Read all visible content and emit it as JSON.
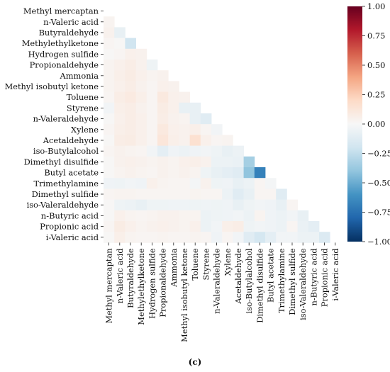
{
  "chart_data": {
    "type": "heatmap",
    "subtype": "lower-triangle correlation matrix",
    "labels": [
      "Methyl mercaptan",
      "n-Valeric acid",
      "Butyraldehyde",
      "Methylethylketone",
      "Hydrogen sulfide",
      "Propionaldehyde",
      "Ammonia",
      "Methyl isobutyl ketone",
      "Toluene",
      "Styrene",
      "n-Valeraldehyde",
      "Xylene",
      "Acetaldehyde",
      "iso-Butylalcohol",
      "Dimethyl disulfide",
      "Butyl acetate",
      "Trimethylamine",
      "Dimethyl sulfide",
      "iso-Valeraldehyde",
      "n-Butyric acid",
      "Propionic acid",
      "i-Valeric acid"
    ],
    "matrix": [
      [],
      [
        0.03
      ],
      [
        0.04,
        -0.08
      ],
      [
        0.02,
        0.01,
        -0.2
      ],
      [
        0.01,
        0.02,
        0.05,
        0.04
      ],
      [
        0.03,
        0.05,
        0.07,
        0.04,
        -0.05
      ],
      [
        0.03,
        0.06,
        0.08,
        0.05,
        0.03,
        0.04
      ],
      [
        0.03,
        0.05,
        0.07,
        0.04,
        0.02,
        0.05,
        0.04
      ],
      [
        0.02,
        0.07,
        0.09,
        0.06,
        0.02,
        0.1,
        0.05,
        0.04
      ],
      [
        -0.03,
        0.06,
        0.07,
        0.04,
        0.02,
        0.08,
        0.05,
        -0.08,
        -0.08
      ],
      [
        0.01,
        0.05,
        0.07,
        0.05,
        0.02,
        0.07,
        0.04,
        0.03,
        -0.08,
        -0.12
      ],
      [
        0.02,
        0.06,
        0.07,
        0.05,
        0.02,
        0.1,
        0.05,
        0.04,
        0.06,
        0.02,
        -0.03
      ],
      [
        0.01,
        0.07,
        0.08,
        0.05,
        0.02,
        0.12,
        0.06,
        0.04,
        0.16,
        0.05,
        0.02,
        0.03
      ],
      [
        0.02,
        0.04,
        0.03,
        0.02,
        -0.03,
        -0.1,
        -0.04,
        -0.06,
        -0.04,
        -0.03,
        -0.05,
        -0.08,
        -0.06
      ],
      [
        0.01,
        0.04,
        0.05,
        0.04,
        0.03,
        0.04,
        0.03,
        0.05,
        0.06,
        0.04,
        -0.06,
        -0.06,
        -0.07,
        -0.34
      ],
      [
        0.01,
        0.03,
        0.04,
        0.03,
        0.02,
        0.04,
        0.03,
        0.04,
        0.03,
        -0.05,
        -0.08,
        -0.1,
        -0.12,
        -0.4,
        -0.68
      ],
      [
        -0.04,
        -0.05,
        -0.03,
        -0.04,
        0.05,
        0.03,
        0.02,
        0.02,
        -0.02,
        0.04,
        -0.05,
        -0.04,
        -0.08,
        -0.06,
        0.02,
        -0.02
      ],
      [
        0.02,
        0.03,
        0.03,
        0.02,
        0.02,
        0.02,
        0.02,
        0.02,
        0.03,
        0.02,
        0.02,
        -0.06,
        -0.12,
        -0.08,
        0.02,
        0.02,
        -0.12
      ],
      [
        0.01,
        -0.05,
        -0.06,
        -0.08,
        -0.05,
        -0.05,
        -0.04,
        -0.04,
        -0.05,
        -0.04,
        -0.05,
        -0.04,
        -0.08,
        -0.05,
        -0.03,
        -0.04,
        -0.08,
        0.02
      ],
      [
        0.01,
        0.05,
        0.03,
        0.02,
        0.03,
        0.04,
        0.04,
        0.03,
        0.03,
        -0.06,
        -0.05,
        -0.04,
        -0.03,
        -0.06,
        0.03,
        -0.04,
        -0.06,
        -0.03,
        -0.08
      ],
      [
        0.02,
        0.08,
        0.05,
        0.03,
        0.04,
        0.05,
        0.04,
        0.03,
        0.05,
        -0.06,
        -0.03,
        0.06,
        0.07,
        -0.05,
        -0.03,
        -0.04,
        -0.06,
        0.02,
        -0.07,
        -0.1
      ],
      [
        0.01,
        0.06,
        0.03,
        0.02,
        0.02,
        0.03,
        0.02,
        0.02,
        0.03,
        0.02,
        -0.04,
        0.02,
        -0.03,
        -0.12,
        -0.18,
        -0.1,
        -0.03,
        -0.03,
        -0.06,
        -0.06,
        -0.14
      ]
    ],
    "colorbar": {
      "colormap": "RdBu_r (diverging: dark blue → white → dark red)",
      "range": [
        -1.0,
        1.0
      ],
      "ticks": [
        -1.0,
        -0.75,
        -0.5,
        -0.25,
        0.0,
        0.25,
        0.5,
        0.75,
        1.0
      ],
      "tick_labels": [
        "−1.00",
        "−0.75",
        "−0.50",
        "−0.25",
        "0.00",
        "0.25",
        "0.50",
        "0.75",
        "1.00"
      ]
    },
    "panel_label": "(c)",
    "title": "",
    "xlabel": "",
    "ylabel": ""
  }
}
